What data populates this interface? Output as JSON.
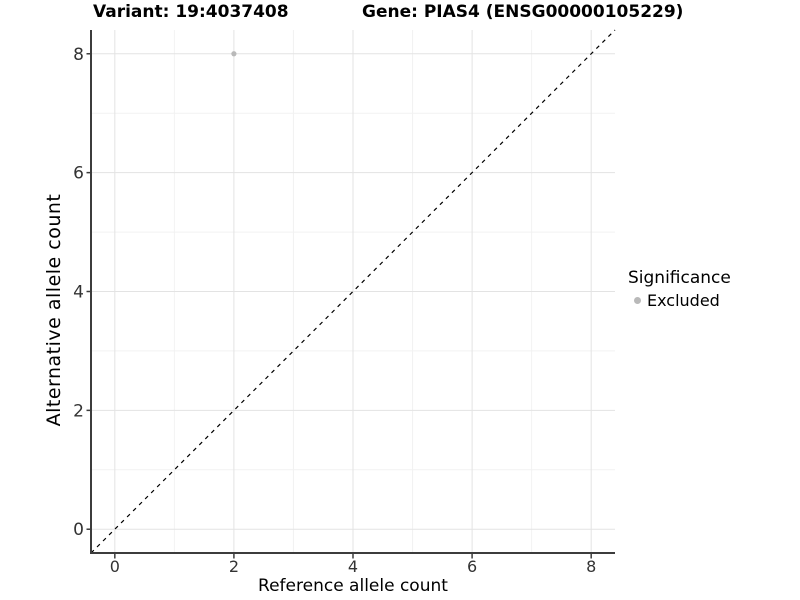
{
  "chart_data": {
    "type": "scatter",
    "titles": {
      "left": "Variant: 19:4037408",
      "right": "Gene: PIAS4 (ENSG00000105229)"
    },
    "xlabel": "Reference allele count",
    "ylabel": "Alternative allele count",
    "xlim": [
      -0.4,
      8.4
    ],
    "ylim": [
      -0.4,
      8.4
    ],
    "x_ticks": [
      0,
      2,
      4,
      6,
      8
    ],
    "y_ticks": [
      0,
      2,
      4,
      6,
      8
    ],
    "x_minor_ticks": [
      1,
      3,
      5,
      7
    ],
    "y_minor_ticks": [
      1,
      3,
      5,
      7
    ],
    "grid": "major+minor",
    "identity_line": {
      "style": "dashed",
      "from": -0.4,
      "to": 8.4,
      "color": "#000000"
    },
    "series": [
      {
        "name": "Excluded",
        "color": "#b9b9b9",
        "points": [
          {
            "x": 2,
            "y": 8
          }
        ]
      }
    ],
    "legend": {
      "title": "Significance",
      "position": "right",
      "items": [
        {
          "label": "Excluded",
          "color": "#b9b9b9",
          "marker": "circle"
        }
      ]
    },
    "colors": {
      "background": "#ffffff",
      "grid_major": "#e3e3e3",
      "grid_minor": "#f2f2f2",
      "axis": "#3c3c3c",
      "tick_label": "#333333",
      "title": "#000000"
    }
  }
}
